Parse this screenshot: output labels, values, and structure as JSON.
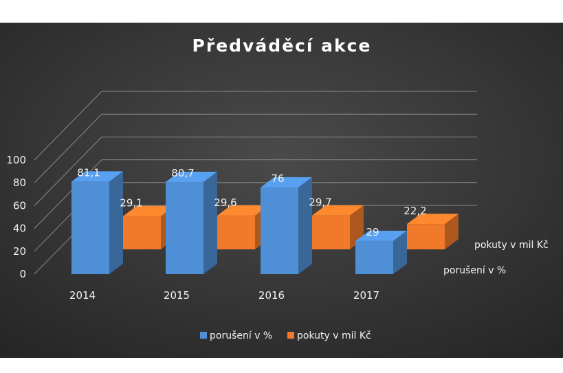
{
  "chart_data": {
    "type": "bar",
    "subtype": "3d-column",
    "title": "Předváděcí akce",
    "categories": [
      "2014",
      "2015",
      "2016",
      "2017"
    ],
    "series": [
      {
        "name": "porušení v %",
        "values": [
          81.1,
          80.7,
          76,
          29
        ],
        "labels": [
          "81,1",
          "80,7",
          "76",
          "29"
        ],
        "color": "#4f8fd6"
      },
      {
        "name": "pokuty v mil Kč",
        "values": [
          29.1,
          29.6,
          29.7,
          22.2
        ],
        "labels": [
          "29,1",
          "29,6",
          "29,7",
          "22,2"
        ],
        "color": "#f07a2a"
      }
    ],
    "y_ticks": [
      "0",
      "20",
      "40",
      "60",
      "80",
      "100"
    ],
    "ylim": [
      0,
      100
    ],
    "grid": true,
    "legend": "bottom",
    "background": "#333333",
    "gridline_color": "#8a8a8a"
  }
}
